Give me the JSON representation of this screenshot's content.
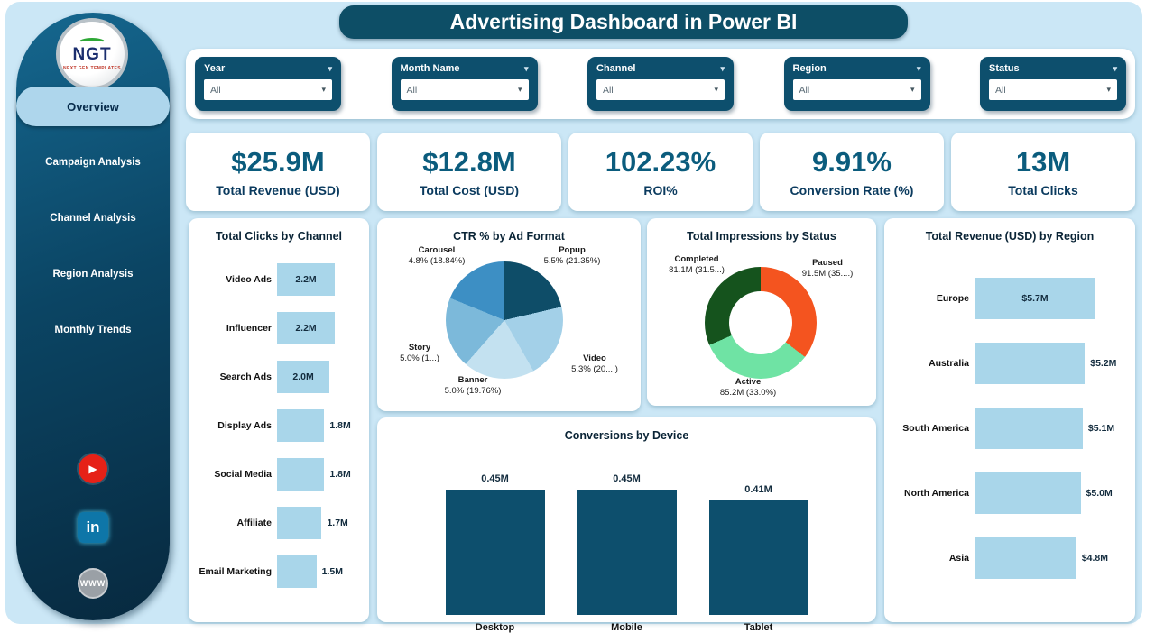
{
  "title": "Advertising Dashboard in Power BI",
  "colors": {
    "background": "#cbe7f6",
    "sidebar": "#0b4564",
    "accent_teal": "#0d4f6d",
    "kpi_value": "#0b5c7d",
    "bar_light_blue": "#a9d6ea",
    "bar_dark_teal": "#0d4f6d"
  },
  "icons": {
    "chevron": "▾",
    "youtube": "▶",
    "linkedin": "in",
    "globe": "WWW"
  },
  "sidebar": {
    "logo": {
      "text": "NGT",
      "subtext": "NEXT GEN TEMPLATES"
    },
    "items": [
      {
        "label": "Overview",
        "active": true
      },
      {
        "label": "Campaign Analysis",
        "active": false
      },
      {
        "label": "Channel Analysis",
        "active": false
      },
      {
        "label": "Region Analysis",
        "active": false
      },
      {
        "label": "Monthly Trends",
        "active": false
      }
    ]
  },
  "filters": [
    {
      "label": "Year",
      "value": "All"
    },
    {
      "label": "Month Name",
      "value": "All"
    },
    {
      "label": "Channel",
      "value": "All"
    },
    {
      "label": "Region",
      "value": "All"
    },
    {
      "label": "Status",
      "value": "All"
    }
  ],
  "kpis": [
    {
      "value": "$25.9M",
      "label": "Total Revenue (USD)"
    },
    {
      "value": "$12.8M",
      "label": "Total Cost (USD)"
    },
    {
      "value": "102.23%",
      "label": "ROI%"
    },
    {
      "value": "9.91%",
      "label": "Conversion Rate (%)"
    },
    {
      "value": "13M",
      "label": "Total Clicks"
    }
  ],
  "chart_data": [
    {
      "id": "total_clicks_by_channel",
      "type": "bar",
      "orientation": "horizontal",
      "title": "Total Clicks by Channel",
      "categories": [
        "Video Ads",
        "Influencer",
        "Search Ads",
        "Display Ads",
        "Social Media",
        "Affiliate",
        "Email Marketing"
      ],
      "values": [
        2.2,
        2.2,
        2.0,
        1.8,
        1.8,
        1.7,
        1.5
      ],
      "value_labels": [
        "2.2M",
        "2.2M",
        "2.0M",
        "1.8M",
        "1.8M",
        "1.7M",
        "1.5M"
      ],
      "bar_color": "#a9d6ea",
      "xlim": [
        0,
        2.2
      ]
    },
    {
      "id": "ctr_by_ad_format",
      "type": "pie",
      "title": "CTR % by Ad Format",
      "slices": [
        {
          "name": "Popup",
          "value_label": "5.5% (21.35%)",
          "pct": 21.35,
          "color": "#0e4d68"
        },
        {
          "name": "Video",
          "value_label": "5.3% (20....)",
          "pct": 20.39,
          "color": "#a3d0e8"
        },
        {
          "name": "Banner",
          "value_label": "5.0% (19.76%)",
          "pct": 19.76,
          "color": "#c3e1f0"
        },
        {
          "name": "Story",
          "value_label": "5.0% (1...)",
          "pct": 19.66,
          "color": "#7cb9da"
        },
        {
          "name": "Carousel",
          "value_label": "4.8% (18.84%)",
          "pct": 18.84,
          "color": "#3d8fc4"
        }
      ]
    },
    {
      "id": "total_impressions_by_status",
      "type": "pie",
      "subtype": "donut",
      "title": "Total Impressions by Status",
      "slices": [
        {
          "name": "Paused",
          "value_label": "91.5M (35....)",
          "pct": 35.46,
          "color": "#f4541f"
        },
        {
          "name": "Active",
          "value_label": "85.2M (33.0%)",
          "pct": 33.02,
          "color": "#6fe3a4"
        },
        {
          "name": "Completed",
          "value_label": "81.1M (31.5...)",
          "pct": 31.52,
          "color": "#15531d"
        }
      ]
    },
    {
      "id": "total_revenue_by_region",
      "type": "bar",
      "orientation": "horizontal",
      "title": "Total Revenue (USD) by Region",
      "categories": [
        "Europe",
        "Australia",
        "South America",
        "North America",
        "Asia"
      ],
      "values": [
        5.7,
        5.2,
        5.1,
        5.0,
        4.8
      ],
      "value_labels": [
        "$5.7M",
        "$5.2M",
        "$5.1M",
        "$5.0M",
        "$4.8M"
      ],
      "bar_color": "#a9d6ea",
      "xlim": [
        0,
        5.7
      ]
    },
    {
      "id": "conversions_by_device",
      "type": "bar",
      "orientation": "vertical",
      "title": "Conversions by Device",
      "categories": [
        "Desktop",
        "Mobile",
        "Tablet"
      ],
      "values": [
        0.45,
        0.45,
        0.41
      ],
      "value_labels": [
        "0.45M",
        "0.45M",
        "0.41M"
      ],
      "bar_color": "#0d4f6d",
      "ylim": [
        0,
        0.45
      ]
    }
  ]
}
